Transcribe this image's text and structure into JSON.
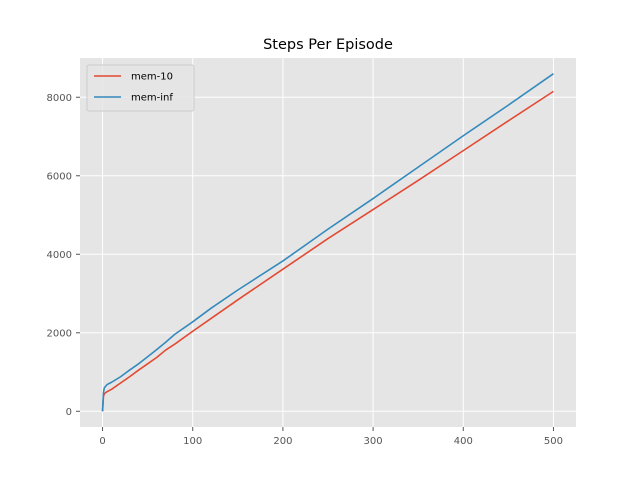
{
  "chart_data": {
    "type": "line",
    "title": "Steps Per Episode",
    "xlabel": "",
    "ylabel": "",
    "xlim": [
      -25,
      525
    ],
    "ylim": [
      -400,
      9000
    ],
    "xticks": [
      0,
      100,
      200,
      300,
      400,
      500
    ],
    "yticks": [
      0,
      2000,
      4000,
      6000,
      8000
    ],
    "grid": true,
    "legend": "upper-left",
    "series": [
      {
        "name": "mem-10",
        "color": "#e24a33",
        "x": [
          0,
          1,
          2,
          5,
          10,
          20,
          30,
          40,
          50,
          60,
          70,
          80,
          100,
          120,
          150,
          200,
          250,
          300,
          350,
          400,
          450,
          500
        ],
        "y": [
          0,
          380,
          450,
          500,
          560,
          720,
          880,
          1050,
          1210,
          1370,
          1560,
          1710,
          2040,
          2360,
          2840,
          3620,
          4400,
          5140,
          5880,
          6640,
          7400,
          8150
        ]
      },
      {
        "name": "mem-inf",
        "color": "#348abd",
        "x": [
          0,
          1,
          2,
          5,
          10,
          20,
          30,
          40,
          50,
          60,
          70,
          80,
          100,
          120,
          150,
          200,
          250,
          300,
          350,
          400,
          450,
          500
        ],
        "y": [
          0,
          480,
          600,
          680,
          740,
          880,
          1050,
          1210,
          1390,
          1570,
          1760,
          1960,
          2280,
          2620,
          3090,
          3830,
          4640,
          5420,
          6220,
          7020,
          7800,
          8600
        ]
      }
    ]
  }
}
